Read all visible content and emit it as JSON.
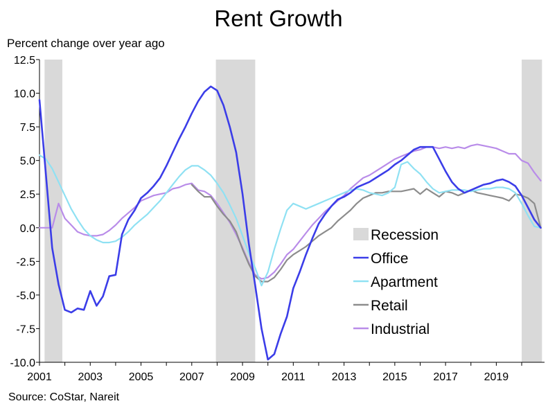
{
  "chart_data": {
    "type": "line",
    "title": "Rent Growth",
    "ylabel": "Percent change over year ago",
    "source": "Source: CoStar, Nareit",
    "ylim": [
      -10.0,
      12.5
    ],
    "xlim": [
      2001.0,
      2020.9
    ],
    "y_ticks": [
      "12.5",
      "10.0",
      "7.5",
      "5.0",
      "2.5",
      "0.0",
      "-2.5",
      "-5.0",
      "-7.5",
      "-10.0"
    ],
    "y_tick_values": [
      12.5,
      10.0,
      7.5,
      5.0,
      2.5,
      0.0,
      -2.5,
      -5.0,
      -7.5,
      -10.0
    ],
    "x_ticks": [
      "2001",
      "2003",
      "2005",
      "2007",
      "2009",
      "2011",
      "2013",
      "2015",
      "2017",
      "2019"
    ],
    "x_tick_values": [
      2001,
      2003,
      2005,
      2007,
      2009,
      2011,
      2013,
      2015,
      2017,
      2019
    ],
    "recessions": [
      [
        2001.2,
        2001.9
      ],
      [
        2007.95,
        2009.5
      ],
      [
        2020.0,
        2020.8
      ]
    ],
    "legend_position": "right",
    "legend": [
      {
        "name": "Recession",
        "color": "#d9d9d9",
        "kind": "box"
      },
      {
        "name": "Office",
        "color": "#3b3de8",
        "kind": "line"
      },
      {
        "name": "Apartment",
        "color": "#8fe1f3",
        "kind": "line"
      },
      {
        "name": "Retail",
        "color": "#8c8c8c",
        "kind": "line"
      },
      {
        "name": "Industrial",
        "color": "#b98ce9",
        "kind": "line"
      }
    ],
    "series": [
      {
        "name": "Office",
        "color": "#3b3de8",
        "x": [
          2001.0,
          2001.25,
          2001.5,
          2001.75,
          2002.0,
          2002.25,
          2002.5,
          2002.75,
          2003.0,
          2003.25,
          2003.5,
          2003.75,
          2004.0,
          2004.25,
          2004.5,
          2004.75,
          2005.0,
          2005.25,
          2005.5,
          2005.75,
          2006.0,
          2006.25,
          2006.5,
          2006.75,
          2007.0,
          2007.25,
          2007.5,
          2007.75,
          2008.0,
          2008.25,
          2008.5,
          2008.75,
          2009.0,
          2009.25,
          2009.5,
          2009.75,
          2010.0,
          2010.25,
          2010.5,
          2010.75,
          2011.0,
          2011.25,
          2011.5,
          2011.75,
          2012.0,
          2012.25,
          2012.5,
          2012.75,
          2013.0,
          2013.25,
          2013.5,
          2013.75,
          2014.0,
          2014.25,
          2014.5,
          2014.75,
          2015.0,
          2015.25,
          2015.5,
          2015.75,
          2016.0,
          2016.25,
          2016.5,
          2016.75,
          2017.0,
          2017.25,
          2017.5,
          2017.75,
          2018.0,
          2018.25,
          2018.5,
          2018.75,
          2019.0,
          2019.25,
          2019.5,
          2019.75,
          2020.0,
          2020.25,
          2020.5,
          2020.75
        ],
        "values": [
          9.5,
          4.0,
          -1.5,
          -4.2,
          -6.1,
          -6.3,
          -6.0,
          -6.1,
          -4.7,
          -5.8,
          -5.1,
          -3.6,
          -3.5,
          -0.5,
          0.6,
          1.3,
          2.2,
          2.6,
          3.1,
          3.7,
          4.6,
          5.6,
          6.6,
          7.5,
          8.5,
          9.4,
          10.1,
          10.5,
          10.2,
          9.1,
          7.5,
          5.6,
          2.5,
          -1.2,
          -4.3,
          -7.5,
          -9.8,
          -9.4,
          -7.9,
          -6.6,
          -4.5,
          -3.3,
          -2.0,
          -0.8,
          0.3,
          1.0,
          1.6,
          2.1,
          2.3,
          2.6,
          3.0,
          3.2,
          3.4,
          3.7,
          4.0,
          4.3,
          4.7,
          5.0,
          5.4,
          5.8,
          6.0,
          6.0,
          6.0,
          5.1,
          4.2,
          3.4,
          2.9,
          2.6,
          2.8,
          3.0,
          3.2,
          3.3,
          3.5,
          3.6,
          3.4,
          3.1,
          2.4,
          1.5,
          0.6,
          0.0
        ]
      },
      {
        "name": "Apartment",
        "color": "#8fe1f3",
        "x": [
          2001.0,
          2001.25,
          2001.5,
          2001.75,
          2002.0,
          2002.25,
          2002.5,
          2002.75,
          2003.0,
          2003.25,
          2003.5,
          2003.75,
          2004.0,
          2004.25,
          2004.5,
          2004.75,
          2005.0,
          2005.25,
          2005.5,
          2005.75,
          2006.0,
          2006.25,
          2006.5,
          2006.75,
          2007.0,
          2007.25,
          2007.5,
          2007.75,
          2008.0,
          2008.25,
          2008.5,
          2008.75,
          2009.0,
          2009.25,
          2009.5,
          2009.75,
          2010.0,
          2010.25,
          2010.5,
          2010.75,
          2011.0,
          2011.25,
          2011.5,
          2011.75,
          2012.0,
          2012.25,
          2012.5,
          2012.75,
          2013.0,
          2013.25,
          2013.5,
          2013.75,
          2014.0,
          2014.25,
          2014.5,
          2014.75,
          2015.0,
          2015.25,
          2015.5,
          2015.75,
          2016.0,
          2016.25,
          2016.5,
          2016.75,
          2017.0,
          2017.25,
          2017.5,
          2017.75,
          2018.0,
          2018.25,
          2018.5,
          2018.75,
          2019.0,
          2019.25,
          2019.5,
          2019.75,
          2020.0,
          2020.25,
          2020.5,
          2020.75
        ],
        "values": [
          5.4,
          5.1,
          4.4,
          3.4,
          2.4,
          1.4,
          0.6,
          -0.1,
          -0.6,
          -0.9,
          -1.1,
          -1.1,
          -1.0,
          -0.7,
          -0.3,
          0.2,
          0.6,
          1.0,
          1.5,
          2.0,
          2.6,
          3.2,
          3.8,
          4.3,
          4.6,
          4.6,
          4.3,
          3.9,
          3.3,
          2.6,
          1.7,
          0.7,
          -0.6,
          -1.9,
          -3.0,
          -4.3,
          -3.3,
          -1.6,
          -0.1,
          1.3,
          1.8,
          1.6,
          1.4,
          1.6,
          1.8,
          2.0,
          2.2,
          2.4,
          2.6,
          2.8,
          2.9,
          2.8,
          2.6,
          2.5,
          2.4,
          2.6,
          3.0,
          4.7,
          4.9,
          4.4,
          4.0,
          3.4,
          2.9,
          2.6,
          2.7,
          2.8,
          2.8,
          2.8,
          2.7,
          2.8,
          2.9,
          2.9,
          3.0,
          3.0,
          2.9,
          2.6,
          1.8,
          0.9,
          0.1,
          0.0
        ]
      },
      {
        "name": "Retail",
        "color": "#8c8c8c",
        "x": [
          2007.0,
          2007.25,
          2007.5,
          2007.75,
          2008.0,
          2008.25,
          2008.5,
          2008.75,
          2009.0,
          2009.25,
          2009.5,
          2009.75,
          2010.0,
          2010.25,
          2010.5,
          2010.75,
          2011.0,
          2011.25,
          2011.5,
          2011.75,
          2012.0,
          2012.25,
          2012.5,
          2012.75,
          2013.0,
          2013.25,
          2013.5,
          2013.75,
          2014.0,
          2014.25,
          2014.5,
          2014.75,
          2015.0,
          2015.25,
          2015.5,
          2015.75,
          2016.0,
          2016.25,
          2016.5,
          2016.75,
          2017.0,
          2017.25,
          2017.5,
          2017.75,
          2018.0,
          2018.25,
          2018.5,
          2018.75,
          2019.0,
          2019.25,
          2019.5,
          2019.75,
          2020.0,
          2020.25,
          2020.5,
          2020.75
        ],
        "values": [
          3.2,
          2.7,
          2.3,
          2.3,
          1.6,
          1.0,
          0.5,
          -0.3,
          -1.6,
          -2.7,
          -3.6,
          -4.0,
          -4.0,
          -3.7,
          -3.1,
          -2.4,
          -2.0,
          -1.7,
          -1.4,
          -1.0,
          -0.6,
          -0.3,
          0.0,
          0.5,
          0.9,
          1.3,
          1.8,
          2.2,
          2.4,
          2.6,
          2.6,
          2.7,
          2.7,
          2.7,
          2.8,
          2.9,
          2.5,
          2.9,
          2.6,
          2.3,
          2.7,
          2.6,
          2.4,
          2.6,
          2.8,
          2.6,
          2.5,
          2.4,
          2.3,
          2.2,
          2.0,
          2.5,
          2.4,
          2.2,
          1.8,
          0.0
        ]
      },
      {
        "name": "Industrial",
        "color": "#b98ce9",
        "x": [
          2001.0,
          2001.25,
          2001.5,
          2001.75,
          2002.0,
          2002.25,
          2002.5,
          2002.75,
          2003.0,
          2003.25,
          2003.5,
          2003.75,
          2004.0,
          2004.25,
          2004.5,
          2004.75,
          2005.0,
          2005.25,
          2005.5,
          2005.75,
          2006.0,
          2006.25,
          2006.5,
          2006.75,
          2007.0,
          2007.25,
          2007.5,
          2007.75,
          2008.0,
          2008.25,
          2008.5,
          2008.75,
          2009.0,
          2009.25,
          2009.5,
          2009.75,
          2010.0,
          2010.25,
          2010.5,
          2010.75,
          2011.0,
          2011.25,
          2011.5,
          2011.75,
          2012.0,
          2012.25,
          2012.5,
          2012.75,
          2013.0,
          2013.25,
          2013.5,
          2013.75,
          2014.0,
          2014.25,
          2014.5,
          2014.75,
          2015.0,
          2015.25,
          2015.5,
          2015.75,
          2016.0,
          2016.25,
          2016.5,
          2016.75,
          2017.0,
          2017.25,
          2017.5,
          2017.75,
          2018.0,
          2018.25,
          2018.5,
          2018.75,
          2019.0,
          2019.25,
          2019.5,
          2019.75,
          2020.0,
          2020.25,
          2020.5,
          2020.75
        ],
        "values": [
          0.0,
          0.0,
          0.0,
          1.8,
          0.7,
          0.2,
          -0.3,
          -0.5,
          -0.6,
          -0.6,
          -0.5,
          -0.2,
          0.2,
          0.7,
          1.1,
          1.5,
          2.0,
          2.2,
          2.4,
          2.5,
          2.6,
          2.9,
          3.0,
          3.2,
          3.3,
          2.8,
          2.7,
          2.4,
          1.8,
          1.1,
          0.4,
          -0.5,
          -1.5,
          -2.6,
          -3.5,
          -3.8,
          -3.7,
          -3.3,
          -2.7,
          -2.0,
          -1.6,
          -1.0,
          -0.4,
          0.2,
          0.7,
          1.2,
          1.6,
          2.0,
          2.4,
          2.9,
          3.3,
          3.7,
          3.9,
          4.2,
          4.5,
          4.8,
          5.1,
          5.3,
          5.5,
          5.7,
          5.8,
          6.0,
          6.0,
          5.9,
          6.0,
          5.9,
          6.0,
          5.9,
          6.1,
          6.2,
          6.1,
          6.0,
          5.9,
          5.7,
          5.5,
          5.5,
          5.0,
          4.8,
          4.1,
          3.5
        ]
      }
    ]
  }
}
